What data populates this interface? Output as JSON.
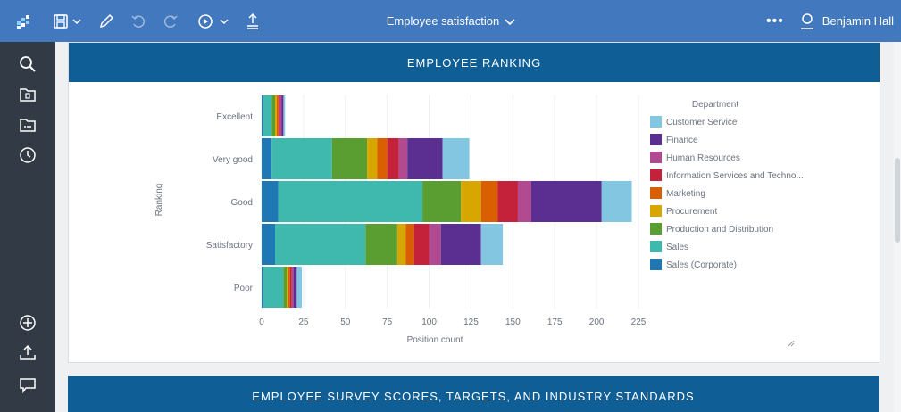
{
  "topbar": {
    "title": "Employee satisfaction",
    "more": "•••",
    "user_name": "Benjamin Hall",
    "icons": [
      "app-logo-icon",
      "save-icon",
      "pencil-icon",
      "undo-icon",
      "redo-icon",
      "play-icon",
      "share-icon",
      "chevron-down-icon",
      "user-icon"
    ]
  },
  "sidebar": {
    "top_icons": [
      "search-icon",
      "folder-icon",
      "folder-dots-icon",
      "clock-icon"
    ],
    "bottom_icons": [
      "plus-circle-icon",
      "upload-icon",
      "comment-icon"
    ]
  },
  "panels": {
    "ranking_header": "EMPLOYEE RANKING",
    "scores_header": "EMPLOYEE SURVEY SCORES, TARGETS, AND INDUSTRY STANDARDS"
  },
  "chart_data": {
    "type": "bar",
    "orientation": "horizontal",
    "stacked": true,
    "categories": [
      "Excellent",
      "Very good",
      "Good",
      "Satisfactory",
      "Poor"
    ],
    "xlabel": "Position count",
    "ylabel": "Ranking",
    "xlim": [
      0,
      225
    ],
    "xticks": [
      0,
      25,
      50,
      75,
      100,
      125,
      150,
      175,
      200,
      225
    ],
    "legend_title": "Department",
    "legend_position": "right",
    "grid": true,
    "series": [
      {
        "name": "Sales (Corporate)",
        "color": "#1f78b4",
        "values": [
          1,
          6,
          10,
          8,
          1
        ]
      },
      {
        "name": "Sales",
        "color": "#3fb8ae",
        "values": [
          5,
          36,
          86,
          54,
          12
        ]
      },
      {
        "name": "Production and Distribution",
        "color": "#5a9e32",
        "values": [
          2,
          21,
          23,
          19,
          2
        ]
      },
      {
        "name": "Procurement",
        "color": "#d8a600",
        "values": [
          1,
          6,
          12,
          5,
          1
        ]
      },
      {
        "name": "Marketing",
        "color": "#d95f02",
        "values": [
          1,
          6,
          10,
          5,
          1
        ]
      },
      {
        "name": "Information Services and Techno...",
        "color": "#c4213a",
        "values": [
          1,
          7,
          12,
          9,
          1
        ]
      },
      {
        "name": "Human Resources",
        "color": "#b24a91",
        "values": [
          1,
          5,
          8,
          7,
          1
        ]
      },
      {
        "name": "Finance",
        "color": "#5a2f91",
        "values": [
          1,
          21,
          42,
          24,
          2
        ]
      },
      {
        "name": "Customer Service",
        "color": "#82c6e2",
        "values": [
          1,
          16,
          18,
          13,
          3
        ]
      }
    ],
    "legend_order": [
      "Customer Service",
      "Finance",
      "Human Resources",
      "Information Services and Techno...",
      "Marketing",
      "Procurement",
      "Production and Distribution",
      "Sales",
      "Sales (Corporate)"
    ]
  }
}
